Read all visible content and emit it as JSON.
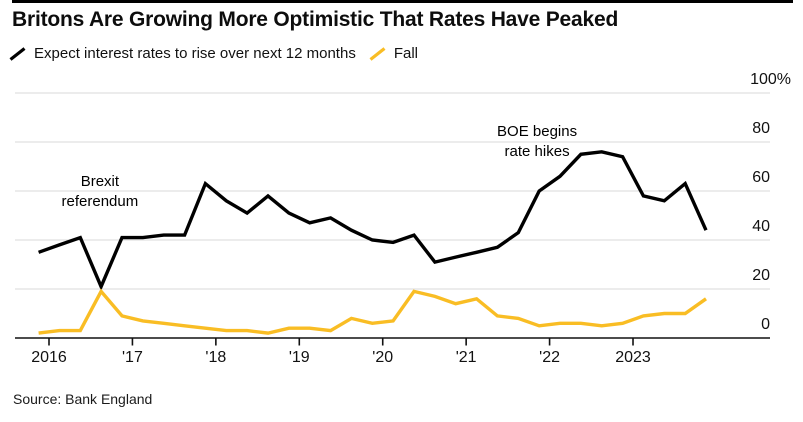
{
  "title": "Britons Are Growing More Optimistic That Rates Have Peaked",
  "source_label": "Source: Bank England",
  "colors": {
    "rise": "#000000",
    "fall": "#F9BD24",
    "grid": "#d9d9d9",
    "axis": "#111111"
  },
  "chart_data": {
    "type": "line",
    "title": "Britons Are Growing More Optimistic That Rates Have Peaked",
    "ylabel": "%",
    "ylim": [
      0,
      100
    ],
    "grid": "horizontal",
    "legend_position": "top-left",
    "x": [
      2015.875,
      2016.125,
      2016.375,
      2016.625,
      2016.875,
      2017.125,
      2017.375,
      2017.625,
      2017.875,
      2018.125,
      2018.375,
      2018.625,
      2018.875,
      2019.125,
      2019.375,
      2019.625,
      2019.875,
      2020.125,
      2020.375,
      2020.625,
      2020.875,
      2021.125,
      2021.375,
      2021.625,
      2021.875,
      2022.125,
      2022.375,
      2022.625,
      2022.875,
      2023.125,
      2023.375,
      2023.625,
      2023.875
    ],
    "series": [
      {
        "name": "Expect interest rates to rise over next 12 months",
        "color": "#000000",
        "values": [
          35,
          38,
          41,
          21,
          41,
          41,
          42,
          42,
          63,
          56,
          51,
          58,
          51,
          47,
          49,
          44,
          40,
          39,
          42,
          31,
          33,
          35,
          37,
          43,
          60,
          66,
          75,
          76,
          74,
          58,
          56,
          63,
          44
        ]
      },
      {
        "name": "Fall",
        "color": "#F9BD24",
        "values": [
          2,
          3,
          3,
          19,
          9,
          7,
          6,
          5,
          4,
          3,
          3,
          2,
          4,
          4,
          3,
          8,
          6,
          7,
          19,
          17,
          14,
          16,
          9,
          8,
          5,
          6,
          6,
          5,
          6,
          9,
          10,
          10,
          16
        ]
      }
    ],
    "y_axis": {
      "ticks": [
        {
          "v": 100,
          "label": "100%"
        },
        {
          "v": 80,
          "label": "80"
        },
        {
          "v": 60,
          "label": "60"
        },
        {
          "v": 40,
          "label": "40"
        },
        {
          "v": 20,
          "label": "20"
        },
        {
          "v": 0,
          "label": "0"
        }
      ]
    },
    "x_axis": {
      "ticks": [
        {
          "t": 2016,
          "label": "2016"
        },
        {
          "t": 2017,
          "label": "'17"
        },
        {
          "t": 2018,
          "label": "'18"
        },
        {
          "t": 2019,
          "label": "'19"
        },
        {
          "t": 2020,
          "label": "'20"
        },
        {
          "t": 2021,
          "label": "'21"
        },
        {
          "t": 2022,
          "label": "'22"
        },
        {
          "t": 2023,
          "label": "2023"
        }
      ]
    },
    "annotations": [
      {
        "text": "Brexit\nreferendum",
        "t": 2016.61,
        "v": 67.8
      },
      {
        "text": "BOE begins\nrate hikes",
        "t": 2021.85,
        "v": 88.2
      }
    ]
  }
}
